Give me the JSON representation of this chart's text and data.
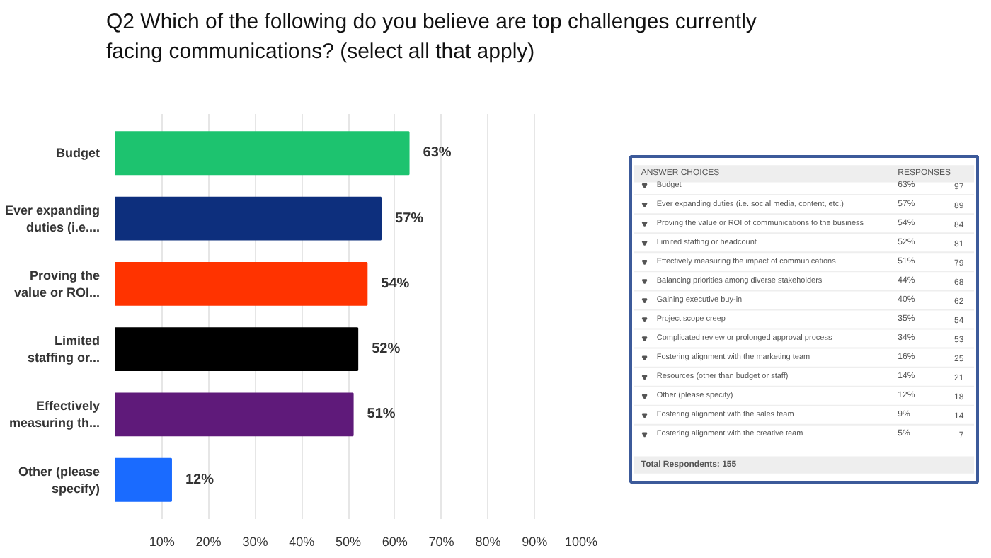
{
  "chart_data": [
    {
      "type": "bar",
      "title": "Q2 Which of the following do you believe are top challenges currently facing communications? (select all that apply)",
      "orientation": "horizontal",
      "categories": [
        "Budget",
        "Ever expanding duties (i.e....",
        "Proving the value or ROI...",
        "Limited staffing or...",
        "Effectively measuring th...",
        "Other (please specify)"
      ],
      "values": [
        63,
        57,
        54,
        52,
        51,
        12
      ],
      "colors": [
        "#1dc36f",
        "#0d2f7d",
        "#ff3300",
        "#000000",
        "#5f1a7a",
        "#1a6bff"
      ],
      "value_labels": [
        "63%",
        "57%",
        "54%",
        "52%",
        "51%",
        "12%"
      ],
      "xlim": [
        0,
        100
      ],
      "xticks": [
        {
          "value": 10,
          "label": "10%"
        },
        {
          "value": 20,
          "label": "20%"
        },
        {
          "value": 30,
          "label": "30%"
        },
        {
          "value": 40,
          "label": "40%"
        },
        {
          "value": 50,
          "label": "50%"
        },
        {
          "value": 60,
          "label": "60%"
        },
        {
          "value": 70,
          "label": "70%"
        },
        {
          "value": 80,
          "label": "80%"
        },
        {
          "value": 90,
          "label": "90%"
        },
        {
          "value": 100,
          "label": "100%"
        }
      ],
      "grid": "x"
    },
    {
      "type": "other",
      "ylabel": "ANSWER CHOICES",
      "data_labels": true,
      "categories": [
        "Budget",
        "Ever expanding duties (i.e. social media, content, etc.)",
        "Proving the value or ROI of communications to the business",
        "Limited staffing or headcount",
        "Effectively measuring the impact of communications",
        "Balancing priorities among diverse stakeholders",
        "Gaining executive buy-in",
        "Project scope creep",
        "Complicated review or prolonged approval process",
        "Fostering alignment with the marketing team",
        "Resources (other than budget or staff)",
        "Other (please specify)",
        "Fostering alignment with the sales team",
        "Fostering alignment with the creative team"
      ],
      "series": [
        {
          "name": "RESPONSES",
          "values": [
            63,
            57,
            54,
            52,
            51,
            44,
            40,
            35,
            34,
            16,
            14,
            12,
            9,
            5
          ],
          "value_labels": [
            "63%",
            "57%",
            "54%",
            "52%",
            "51%",
            "44%",
            "40%",
            "35%",
            "34%",
            "16%",
            "14%",
            "12%",
            "9%",
            "5%"
          ]
        },
        {
          "values": [
            97,
            89,
            84,
            81,
            79,
            68,
            62,
            54,
            53,
            25,
            21,
            18,
            14,
            7
          ]
        }
      ],
      "annotations": [
        "Total Respondents: 155"
      ]
    }
  ]
}
